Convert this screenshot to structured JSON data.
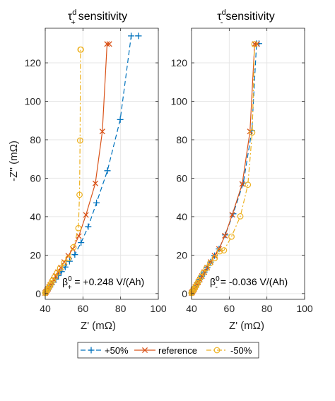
{
  "chart_data": [
    {
      "type": "line",
      "title": "τ+d sensitivity",
      "title_parts": {
        "symbol": "τ",
        "sup": "d",
        "sub": "+",
        "rest": "sensitivity"
      },
      "xlabel": "Z' (mΩ)",
      "ylabel": "-Z'' (mΩ)",
      "xlim": [
        40,
        100
      ],
      "ylim": [
        -3,
        138
      ],
      "xticks": [
        "40",
        "60",
        "80",
        "100"
      ],
      "yticks": [
        "0",
        "20",
        "40",
        "60",
        "80",
        "100",
        "120"
      ],
      "grid": true,
      "annotation": {
        "symbol": "β",
        "sup": "0",
        "sub": "+",
        "text": " = +0.248 V/(Ah)"
      },
      "series": [
        {
          "name": "+50%",
          "color": "#0072BD",
          "dash": "7,4",
          "marker": "plus",
          "x": [
            40.0,
            40.4,
            40.8,
            41.3,
            41.9,
            42.6,
            43.4,
            44.4,
            45.6,
            47.0,
            48.7,
            50.6,
            52.9,
            55.7,
            59.0,
            62.8,
            67.2,
            73.0,
            79.8,
            85.6,
            89.5
          ],
          "y": [
            0.3,
            0.7,
            1.2,
            1.8,
            2.6,
            3.5,
            4.6,
            5.9,
            7.5,
            9.3,
            11.4,
            13.8,
            16.8,
            20.3,
            26.5,
            34.8,
            47.2,
            63.9,
            90.5,
            134.0,
            134.0
          ]
        },
        {
          "name": "reference",
          "color": "#D95319",
          "dash": "",
          "marker": "x",
          "x": [
            40.0,
            40.3,
            40.6,
            41.0,
            41.5,
            42.0,
            42.7,
            43.5,
            44.4,
            45.5,
            46.8,
            48.3,
            50.1,
            52.2,
            54.6,
            57.8,
            61.6,
            66.6,
            70.3,
            72.8,
            74.0
          ],
          "y": [
            0.3,
            0.7,
            1.2,
            1.8,
            2.5,
            3.4,
            4.5,
            5.8,
            7.3,
            9.1,
            11.2,
            13.5,
            16.4,
            19.7,
            23.2,
            29.9,
            40.9,
            57.3,
            84.3,
            129.8,
            129.8
          ]
        },
        {
          "name": "-50%",
          "color": "#EDB120",
          "dash": "7,3,2,3",
          "marker": "circle",
          "x": [
            40.0,
            40.3,
            40.6,
            41.0,
            41.4,
            41.9,
            42.5,
            43.2,
            44.0,
            45.0,
            46.3,
            47.9,
            49.9,
            52.3,
            55.0,
            57.6,
            58.2,
            58.5,
            58.7,
            58.9
          ],
          "y": [
            0.3,
            0.7,
            1.2,
            1.7,
            2.4,
            3.2,
            4.2,
            5.4,
            6.9,
            8.7,
            10.8,
            13.2,
            15.8,
            18.4,
            24.1,
            34.0,
            51.4,
            79.6,
            126.9,
            126.9
          ]
        }
      ]
    },
    {
      "type": "line",
      "title": "τ-d sensitivity",
      "title_parts": {
        "symbol": "τ",
        "sup": "d",
        "sub": "-",
        "rest": "sensitivity"
      },
      "xlabel": "Z' (mΩ)",
      "ylabel": "",
      "xlim": [
        40,
        100
      ],
      "ylim": [
        -3,
        138
      ],
      "xticks": [
        "40",
        "60",
        "80",
        "100"
      ],
      "yticks": [
        "0",
        "20",
        "40",
        "60",
        "80",
        "100",
        "120"
      ],
      "grid": true,
      "annotation": {
        "symbol": "β",
        "sup": "0",
        "sub": "-",
        "text": " = -0.036 V/(Ah)"
      },
      "series": [
        {
          "name": "+50%",
          "color": "#0072BD",
          "dash": "7,4",
          "marker": "plus",
          "x": [
            40.0,
            40.3,
            40.6,
            41.0,
            41.5,
            42.0,
            42.7,
            43.5,
            44.4,
            45.5,
            46.8,
            48.3,
            50.1,
            52.2,
            54.6,
            57.9,
            62.1,
            67.5,
            72.0,
            74.5,
            75.8
          ],
          "y": [
            0.3,
            0.7,
            1.2,
            1.8,
            2.5,
            3.4,
            4.5,
            5.8,
            7.3,
            9.1,
            11.2,
            13.5,
            16.4,
            19.7,
            23.2,
            30.5,
            41.5,
            57.5,
            84.8,
            130.0,
            130.0
          ]
        },
        {
          "name": "reference",
          "color": "#D95319",
          "dash": "",
          "marker": "x",
          "x": [
            40.0,
            40.3,
            40.6,
            41.0,
            41.5,
            42.0,
            42.7,
            43.5,
            44.4,
            45.5,
            46.8,
            48.3,
            50.1,
            52.2,
            54.6,
            57.7,
            61.6,
            66.9,
            71.0,
            73.5,
            74.8
          ],
          "y": [
            0.3,
            0.7,
            1.2,
            1.8,
            2.5,
            3.4,
            4.5,
            5.8,
            7.3,
            9.1,
            11.2,
            13.5,
            16.4,
            19.7,
            23.2,
            30.1,
            41.0,
            57.0,
            84.3,
            129.8,
            129.8
          ]
        },
        {
          "name": "-50%",
          "color": "#EDB120",
          "dash": "7,3,2,3",
          "marker": "circle",
          "x": [
            40.0,
            40.3,
            40.6,
            41.0,
            41.4,
            41.9,
            42.5,
            43.2,
            44.0,
            45.0,
            46.3,
            47.9,
            49.9,
            52.3,
            55.0,
            57.2,
            61.2,
            65.9,
            69.9,
            72.2,
            73.4
          ],
          "y": [
            0.3,
            0.7,
            1.2,
            1.7,
            2.4,
            3.2,
            4.2,
            5.4,
            6.9,
            8.7,
            10.8,
            13.2,
            15.8,
            18.4,
            22.0,
            22.5,
            29.6,
            40.2,
            56.6,
            83.8,
            129.7
          ]
        }
      ]
    }
  ],
  "legend": {
    "placement": "bottom-center",
    "entries": [
      {
        "label": "+50%",
        "color": "#0072BD",
        "dash": "7,4",
        "marker": "plus"
      },
      {
        "label": "reference",
        "color": "#D95319",
        "dash": "",
        "marker": "x"
      },
      {
        "label": "-50%",
        "color": "#EDB120",
        "dash": "7,3,2,3",
        "marker": "circle"
      }
    ]
  }
}
